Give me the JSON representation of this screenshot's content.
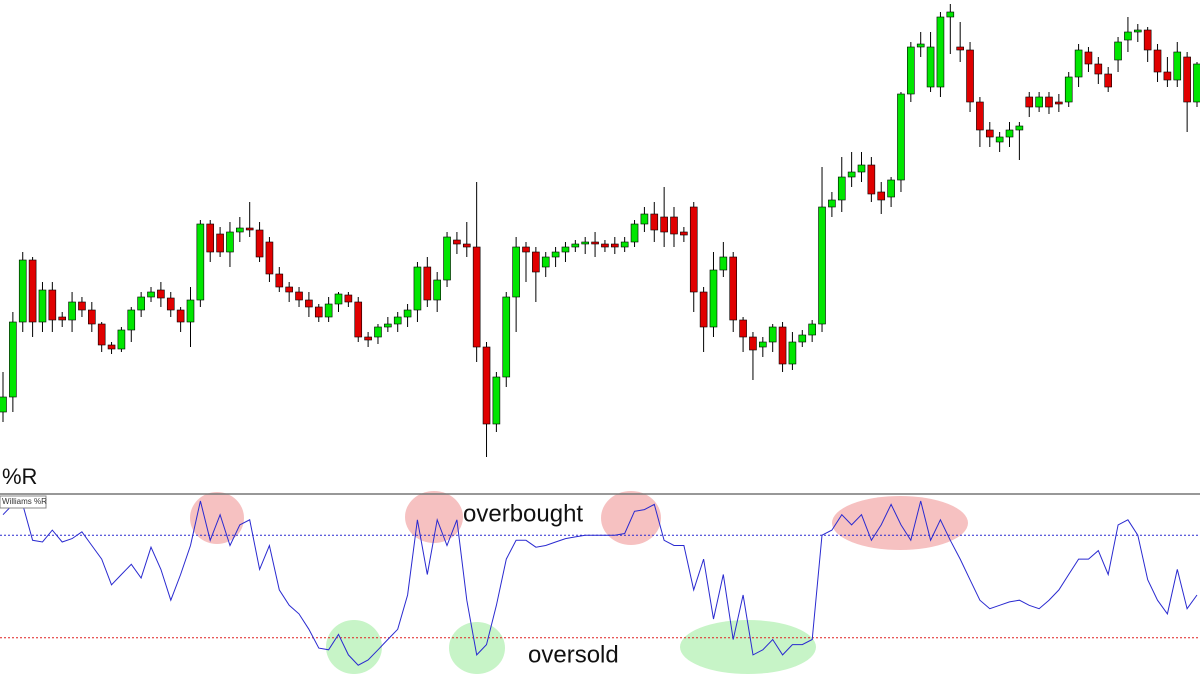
{
  "chart_data": [
    {
      "type": "candlestick",
      "up_color": "#00e600",
      "down_color": "#e00000",
      "outline_color": "#000000",
      "ylim": [
        0,
        480
      ],
      "open": [
        70,
        85,
        160,
        222,
        160,
        192,
        165,
        162,
        180,
        172,
        158,
        137,
        133,
        152,
        172,
        185,
        192,
        184,
        172,
        160,
        182,
        258,
        248,
        230,
        250,
        254,
        252,
        240,
        208,
        195,
        190,
        182,
        175,
        165,
        178,
        187,
        180,
        145,
        145,
        155,
        158,
        165,
        172,
        215,
        182,
        202,
        242,
        238,
        235,
        135,
        58,
        105,
        185,
        235,
        230,
        215,
        225,
        230,
        235,
        238,
        240,
        238,
        238,
        235,
        240,
        258,
        268,
        265,
        265,
        250,
        275,
        190,
        155,
        212,
        225,
        162,
        145,
        135,
        140,
        155,
        118,
        140,
        147,
        158,
        275,
        282,
        305,
        310,
        317,
        290,
        285,
        302,
        388,
        435,
        395,
        395,
        465,
        435,
        432,
        380,
        352,
        340,
        345,
        352,
        385,
        375,
        385,
        380,
        380,
        405,
        430,
        418,
        408,
        422,
        442,
        450,
        452,
        432,
        410,
        402,
        425,
        380
      ],
      "high": [
        110,
        170,
        230,
        225,
        200,
        200,
        170,
        190,
        185,
        180,
        160,
        140,
        155,
        175,
        190,
        195,
        200,
        190,
        175,
        195,
        262,
        262,
        255,
        260,
        265,
        280,
        260,
        245,
        215,
        200,
        195,
        190,
        178,
        185,
        190,
        190,
        185,
        150,
        158,
        165,
        170,
        178,
        220,
        225,
        210,
        250,
        250,
        260,
        300,
        140,
        110,
        190,
        245,
        240,
        235,
        230,
        235,
        240,
        242,
        245,
        250,
        242,
        245,
        245,
        262,
        275,
        280,
        295,
        275,
        255,
        280,
        195,
        230,
        240,
        230,
        165,
        150,
        145,
        158,
        160,
        150,
        152,
        162,
        315,
        290,
        325,
        330,
        330,
        325,
        300,
        305,
        390,
        440,
        450,
        450,
        470,
        478,
        460,
        440,
        385,
        360,
        350,
        360,
        360,
        390,
        390,
        390,
        388,
        410,
        438,
        435,
        425,
        415,
        445,
        465,
        458,
        455,
        438,
        425,
        440,
        430,
        420
      ],
      "low": [
        60,
        70,
        150,
        145,
        150,
        150,
        155,
        150,
        165,
        150,
        130,
        128,
        130,
        140,
        165,
        180,
        175,
        165,
        150,
        135,
        175,
        220,
        225,
        215,
        240,
        245,
        220,
        200,
        190,
        180,
        175,
        165,
        160,
        160,
        170,
        175,
        140,
        135,
        138,
        150,
        150,
        155,
        160,
        175,
        170,
        195,
        228,
        225,
        120,
        25,
        50,
        95,
        150,
        200,
        180,
        205,
        215,
        220,
        230,
        228,
        225,
        230,
        228,
        230,
        235,
        250,
        240,
        235,
        235,
        240,
        170,
        130,
        145,
        205,
        150,
        130,
        102,
        125,
        130,
        110,
        112,
        135,
        140,
        150,
        265,
        270,
        295,
        300,
        280,
        268,
        275,
        290,
        380,
        425,
        390,
        385,
        428,
        420,
        370,
        335,
        335,
        330,
        335,
        322,
        365,
        370,
        368,
        370,
        375,
        395,
        410,
        398,
        390,
        410,
        430,
        440,
        420,
        400,
        395,
        395,
        350,
        375
      ],
      "close": [
        85,
        160,
        222,
        160,
        192,
        162,
        162,
        180,
        172,
        158,
        137,
        133,
        152,
        172,
        185,
        190,
        184,
        172,
        160,
        182,
        258,
        230,
        230,
        250,
        254,
        252,
        225,
        208,
        195,
        190,
        182,
        175,
        165,
        178,
        188,
        180,
        145,
        142,
        155,
        158,
        165,
        172,
        215,
        182,
        202,
        245,
        238,
        235,
        135,
        58,
        105,
        185,
        235,
        230,
        210,
        225,
        230,
        235,
        238,
        240,
        238,
        235,
        235,
        240,
        258,
        268,
        252,
        250,
        248,
        247,
        190,
        155,
        212,
        225,
        162,
        145,
        132,
        140,
        155,
        118,
        140,
        147,
        158,
        275,
        282,
        305,
        310,
        317,
        288,
        282,
        302,
        388,
        435,
        438,
        435,
        465,
        470,
        432,
        380,
        352,
        345,
        345,
        352,
        356,
        375,
        385,
        375,
        378,
        405,
        432,
        418,
        408,
        395,
        440,
        450,
        452,
        432,
        410,
        402,
        430,
        380,
        418
      ]
    },
    {
      "type": "line",
      "title": "%R",
      "ylim": [
        -100,
        0
      ],
      "series": [
        {
          "name": "Williams %R",
          "color": "#2a2ad0",
          "values": [
            -8,
            -2,
            -2,
            -23,
            -24,
            -17,
            -24,
            -22,
            -18,
            -26,
            -34,
            -49,
            -43,
            -37,
            -45,
            -27,
            -40,
            -58,
            -43,
            -26,
            0,
            -23,
            -8,
            -26,
            -14,
            -11,
            -40,
            -26,
            -52,
            -61,
            -66,
            -75,
            -86,
            -87,
            -78,
            -90,
            -96,
            -93,
            -87,
            -81,
            -75,
            -55,
            -11,
            -43,
            -11,
            -26,
            -11,
            -58,
            -90,
            -84,
            -61,
            -34,
            -23,
            -23,
            -27,
            -26,
            -24,
            -22,
            -21,
            -20,
            -20,
            -20,
            -20,
            -19,
            -6,
            -5,
            -2,
            -23,
            -26,
            -26,
            -52,
            -34,
            -69,
            -43,
            -81,
            -55,
            -90,
            -87,
            -81,
            -90,
            -84,
            -84,
            -81,
            -20,
            -17,
            -8,
            -14,
            -8,
            -23,
            -14,
            -2,
            -14,
            -23,
            0,
            -23,
            -11,
            -23,
            -34,
            -46,
            -58,
            -63,
            -61,
            -59,
            -58,
            -61,
            -63,
            -58,
            -52,
            -43,
            -34,
            -34,
            -29,
            -43,
            -14,
            -11,
            -20,
            -46,
            -58,
            -66,
            -40,
            -63,
            -55
          ]
        }
      ],
      "levels": [
        {
          "value": -20,
          "color": "#2a2ad0"
        },
        {
          "value": -80,
          "color": "#e02020"
        }
      ],
      "annotations": [
        "overbought",
        "oversold"
      ]
    }
  ]
}
